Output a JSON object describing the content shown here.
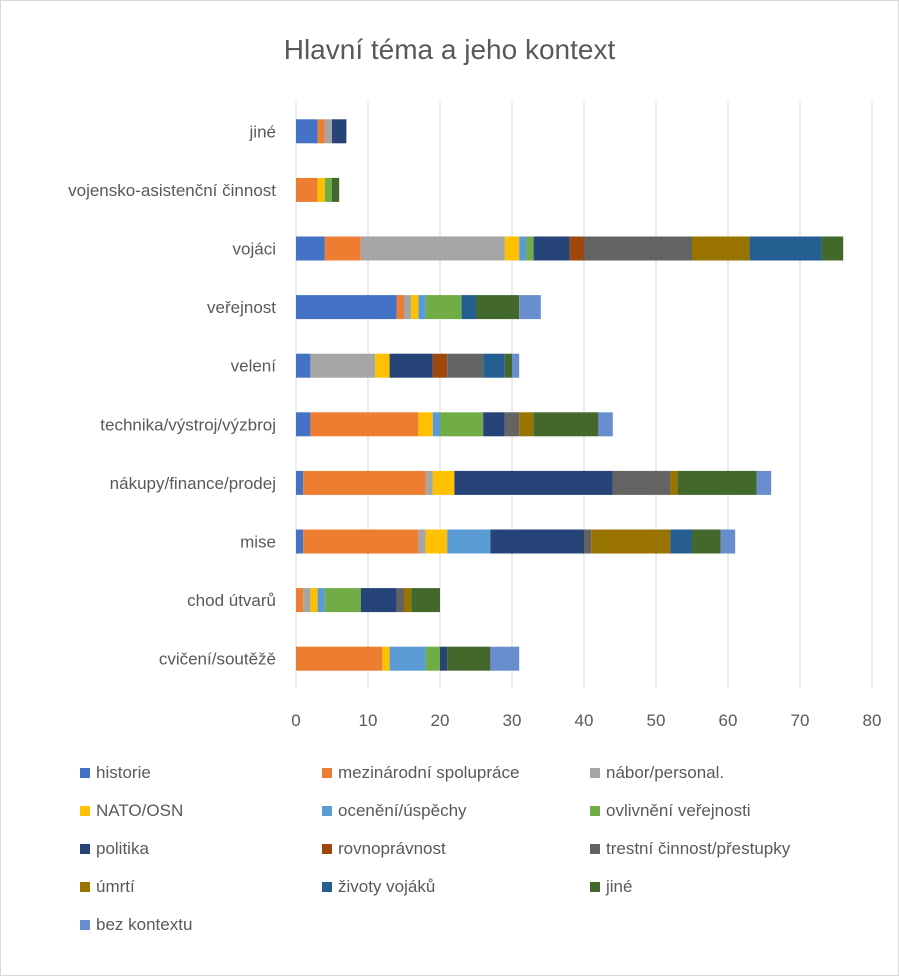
{
  "chart_data": {
    "type": "bar",
    "orientation": "horizontal",
    "stacked": true,
    "title": "Hlavní téma a jeho kontext",
    "categories": [
      "cvičení/soutěžě",
      "chod útvarů",
      "mise",
      "nákupy/finance/prodej",
      "technika/výstroj/výzbroj",
      "velení",
      "veřejnost",
      "vojáci",
      "vojensko-asistenční činnost",
      "jiné"
    ],
    "xlim": [
      0,
      80
    ],
    "xticks": [
      "0",
      "10",
      "20",
      "30",
      "40",
      "50",
      "60",
      "70",
      "80"
    ],
    "grid": true,
    "legend_position": "bottom",
    "series": [
      {
        "name": "historie",
        "color": "#4472C4",
        "values": [
          0,
          0,
          1,
          1,
          2,
          2,
          14,
          4,
          0,
          3
        ]
      },
      {
        "name": "mezinárodní spolupráce",
        "color": "#ED7D31",
        "values": [
          12,
          1,
          16,
          17,
          15,
          0,
          1,
          5,
          3,
          1
        ]
      },
      {
        "name": "nábor/personal.",
        "color": "#A5A5A5",
        "values": [
          0,
          1,
          1,
          1,
          0,
          9,
          1,
          20,
          0,
          1
        ]
      },
      {
        "name": "NATO/OSN",
        "color": "#FFC000",
        "values": [
          1,
          1,
          3,
          3,
          2,
          2,
          1,
          2,
          1,
          0
        ]
      },
      {
        "name": "ocenění/úspěchy",
        "color": "#5B9BD5",
        "values": [
          5,
          1,
          6,
          0,
          1,
          0,
          1,
          1,
          0,
          0
        ]
      },
      {
        "name": "ovlivnění veřejnosti",
        "color": "#70AD47",
        "values": [
          2,
          5,
          0,
          0,
          6,
          0,
          5,
          1,
          1,
          0
        ]
      },
      {
        "name": "politika",
        "color": "#264478",
        "values": [
          1,
          5,
          13,
          22,
          3,
          6,
          0,
          5,
          0,
          2
        ]
      },
      {
        "name": "rovnoprávnost",
        "color": "#9E480E",
        "values": [
          0,
          0,
          0,
          0,
          0,
          2,
          0,
          2,
          0,
          0
        ]
      },
      {
        "name": "trestní činnost/přestupky",
        "color": "#636363",
        "values": [
          0,
          1,
          1,
          8,
          2,
          5,
          0,
          15,
          0,
          0
        ]
      },
      {
        "name": "úmrtí",
        "color": "#997300",
        "values": [
          0,
          1,
          11,
          1,
          2,
          0,
          0,
          8,
          0,
          0
        ]
      },
      {
        "name": "životy vojáků",
        "color": "#255E91",
        "values": [
          0,
          0,
          3,
          0,
          0,
          3,
          2,
          10,
          0,
          0
        ]
      },
      {
        "name": "jiné",
        "color": "#43682B",
        "values": [
          6,
          4,
          4,
          11,
          9,
          1,
          6,
          3,
          1,
          0
        ]
      },
      {
        "name": "bez kontextu",
        "color": "#698ED0",
        "values": [
          4,
          0,
          2,
          2,
          2,
          1,
          3,
          0,
          0,
          0
        ]
      }
    ]
  }
}
